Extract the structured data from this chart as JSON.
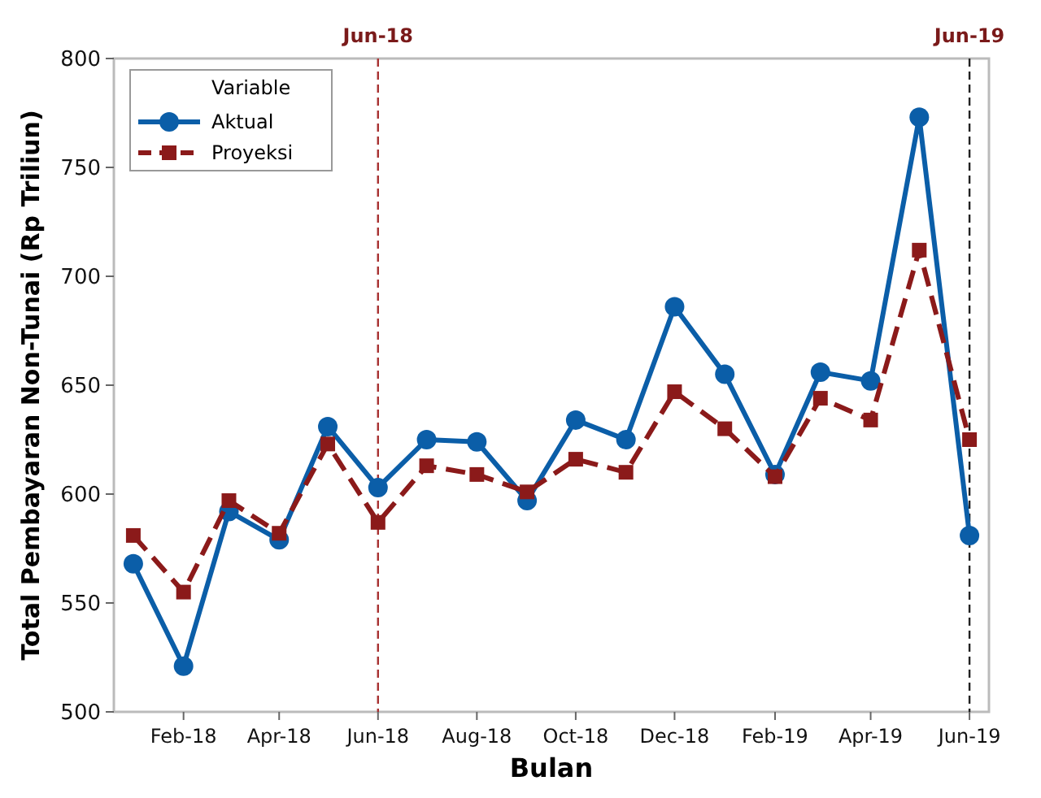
{
  "chart_data": {
    "type": "line",
    "xlabel": "Bulan",
    "ylabel": "Total Pembayaran Non-Tunai (Rp Triliun)",
    "legend_title": "Variable",
    "legend": "top left",
    "grid": false,
    "x": [
      "2018-01",
      "2018-02",
      "2018-03",
      "2018-04",
      "2018-05",
      "2018-06",
      "2018-07",
      "2018-08",
      "2018-09",
      "2018-10",
      "2018-11",
      "2018-12",
      "2019-01",
      "2019-02",
      "2019-03",
      "2019-04",
      "2019-05",
      "2019-06"
    ],
    "xlim": [
      "2017-12-20",
      "2019-06-13"
    ],
    "xticks": [
      {
        "value": "2018-02",
        "label": "Feb-18"
      },
      {
        "value": "2018-04",
        "label": "Apr-18"
      },
      {
        "value": "2018-06",
        "label": "Jun-18"
      },
      {
        "value": "2018-08",
        "label": "Aug-18"
      },
      {
        "value": "2018-10",
        "label": "Oct-18"
      },
      {
        "value": "2018-12",
        "label": "Dec-18"
      },
      {
        "value": "2019-02",
        "label": "Feb-19"
      },
      {
        "value": "2019-04",
        "label": "Apr-19"
      },
      {
        "value": "2019-06",
        "label": "Jun-19"
      }
    ],
    "ylim": [
      500,
      800
    ],
    "yticks": [
      500,
      550,
      600,
      650,
      700,
      750,
      800
    ],
    "series": [
      {
        "name": "Aktual",
        "color": "#0b5ea8",
        "marker": "circle",
        "line_style": "solid",
        "values": [
          568,
          521,
          592,
          579,
          631,
          603,
          625,
          624,
          597,
          634,
          625,
          686,
          655,
          609,
          656,
          652,
          773,
          581
        ]
      },
      {
        "name": "Proyeksi",
        "color": "#8b1a1a",
        "marker": "square",
        "line_style": "dashed",
        "values": [
          581,
          555,
          597,
          582,
          623,
          587,
          613,
          609,
          601,
          616,
          610,
          647,
          630,
          608,
          644,
          634,
          712,
          625
        ]
      }
    ],
    "ref_lines": [
      {
        "axis": "x",
        "value": "2018-06",
        "label": "Jun-18",
        "color": "#a83232",
        "line_style": "dashed"
      },
      {
        "axis": "x",
        "value": "2019-06",
        "label": "Jun-19",
        "color": "#222222",
        "line_style": "dashed"
      }
    ]
  }
}
